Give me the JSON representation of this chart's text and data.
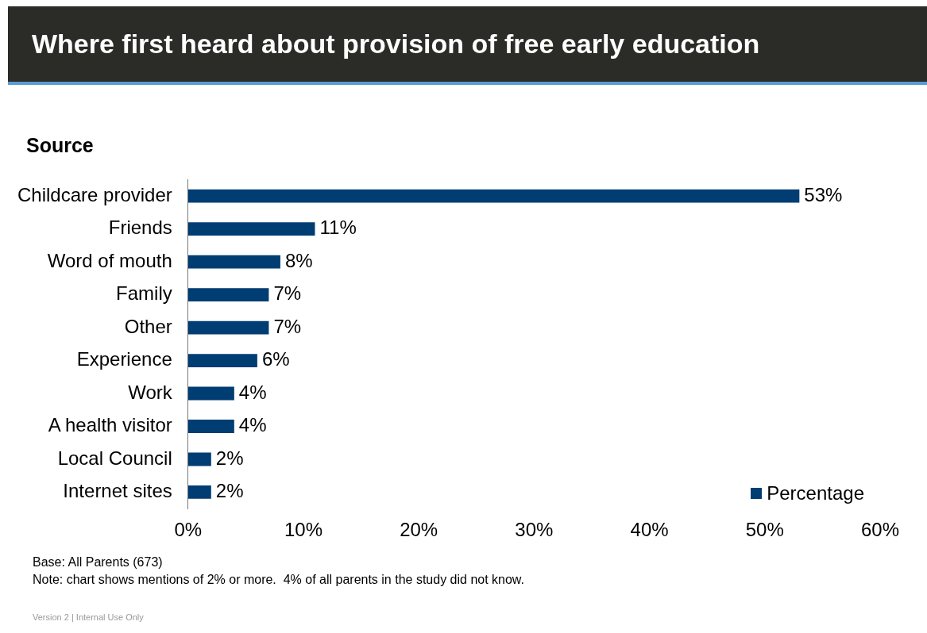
{
  "chart_data": {
    "type": "bar",
    "orientation": "horizontal",
    "title": "Where first heard about provision of free early education",
    "ylabel": "Source",
    "categories": [
      "Childcare provider",
      "Friends",
      "Word of mouth",
      "Family",
      "Other",
      "Experience",
      "Work",
      "A health visitor",
      "Local Council",
      "Internet sites"
    ],
    "series": [
      {
        "name": "Percentage",
        "color": "#003d73",
        "values": [
          53,
          11,
          8,
          7,
          7,
          6,
          4,
          4,
          2,
          2
        ],
        "value_labels": [
          "53%",
          "11%",
          "8%",
          "7%",
          "7%",
          "6%",
          "4%",
          "4%",
          "2%",
          "2%"
        ]
      }
    ],
    "xlim": [
      0,
      60
    ],
    "xticks": [
      {
        "value": 0,
        "label": "0%"
      },
      {
        "value": 10,
        "label": "10%"
      },
      {
        "value": 20,
        "label": "20%"
      },
      {
        "value": 30,
        "label": "30%"
      },
      {
        "value": 40,
        "label": "40%"
      },
      {
        "value": 50,
        "label": "50%"
      },
      {
        "value": 60,
        "label": "60%"
      }
    ],
    "grid": false,
    "legend": "bottom right",
    "annotations": [
      "Base: All Parents (673)",
      "Note: chart shows mentions of 2% or more.  4% of all parents in the study did not know.",
      "Version 2 | Internal Use Only"
    ]
  }
}
